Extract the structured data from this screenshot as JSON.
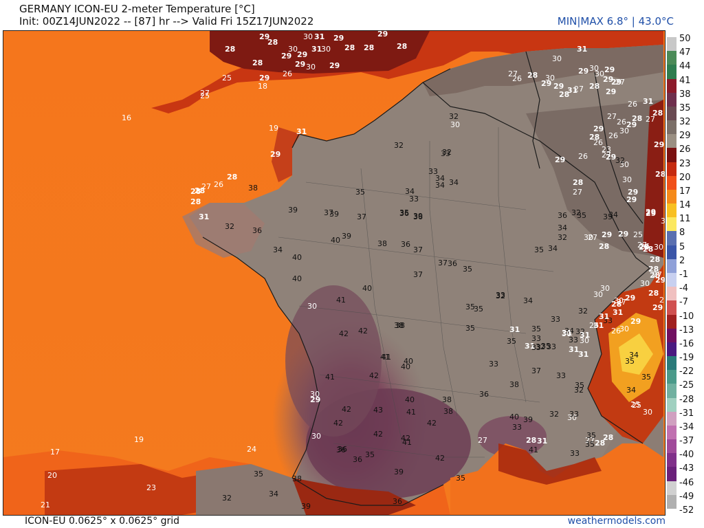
{
  "header": {
    "title": "GERMANY ICON-EU 2-meter Temperature [°C]",
    "init_line": "Init: 00Z14JUN2022 -- [87] hr --> Valid Fri 15Z17JUN2022",
    "minmax": "MIN|MAX 6.8° | 43.0°C"
  },
  "footer": {
    "model": "ICON-EU 0.0625° x 0.0625° grid",
    "site": "weathermodels.com"
  },
  "colorbar": {
    "ticks": [
      "50",
      "47",
      "44",
      "41",
      "38",
      "35",
      "32",
      "29",
      "26",
      "23",
      "20",
      "17",
      "14",
      "11",
      "8",
      "5",
      "2",
      "-1",
      "-4",
      "-7",
      "-10",
      "-13",
      "-16",
      "-19",
      "-22",
      "-25",
      "-28",
      "-31",
      "-34",
      "-37",
      "-40",
      "-43",
      "-46",
      "-49",
      "-52"
    ],
    "colors": [
      "#c8c8c8",
      "#4a8a57",
      "#2e7d4f",
      "#8b1a2a",
      "#6e2f4d",
      "#6a4a52",
      "#7b6f68",
      "#9a8f82",
      "#7a1010",
      "#c52a10",
      "#f0501a",
      "#f58a1a",
      "#f8c020",
      "#fbe860",
      "#5a6fb0",
      "#3a55a8",
      "#8fa0d8",
      "#c8d0f0",
      "#f0c0c0",
      "#d05050",
      "#a02020",
      "#701060",
      "#4a1a80",
      "#2a7a7a",
      "#4a9a8a",
      "#70b0a0",
      "#a0d0c0",
      "#d0a0c0",
      "#c070b0",
      "#a04a9a",
      "#80308a",
      "#6a207a",
      "#d0d0d0",
      "#b0b0b0"
    ]
  },
  "map": {
    "labels": [
      {
        "t": "29"
      },
      {
        "t": "28"
      },
      {
        "t": "30"
      },
      {
        "t": "29"
      },
      {
        "t": "31"
      },
      {
        "t": "31"
      },
      {
        "t": "29"
      },
      {
        "t": "28"
      },
      {
        "t": "30"
      },
      {
        "t": "29"
      },
      {
        "t": "28"
      },
      {
        "t": "29"
      },
      {
        "t": "30"
      },
      {
        "t": "29"
      },
      {
        "t": "30"
      },
      {
        "t": "28"
      },
      {
        "t": "29"
      },
      {
        "t": "28"
      },
      {
        "t": "28"
      },
      {
        "t": "25"
      },
      {
        "t": "26"
      },
      {
        "t": "29"
      },
      {
        "t": "18"
      },
      {
        "t": "27"
      },
      {
        "t": "25"
      },
      {
        "t": "16"
      },
      {
        "t": "19"
      },
      {
        "t": "31"
      },
      {
        "t": "29"
      },
      {
        "t": "28"
      },
      {
        "t": "28"
      },
      {
        "t": "27"
      },
      {
        "t": "26"
      },
      {
        "t": "28"
      },
      {
        "t": "28"
      },
      {
        "t": "31"
      },
      {
        "t": "32"
      },
      {
        "t": "38"
      },
      {
        "t": "36"
      },
      {
        "t": "34"
      },
      {
        "t": "40"
      },
      {
        "t": "40"
      },
      {
        "t": "41"
      },
      {
        "t": "30"
      },
      {
        "t": "42"
      },
      {
        "t": "41"
      },
      {
        "t": "30"
      },
      {
        "t": "29"
      },
      {
        "t": "30"
      },
      {
        "t": "36"
      },
      {
        "t": "39"
      },
      {
        "t": "37"
      },
      {
        "t": "37"
      },
      {
        "t": "35"
      },
      {
        "t": "40"
      },
      {
        "t": "39"
      },
      {
        "t": "38"
      },
      {
        "t": "40"
      },
      {
        "t": "42"
      },
      {
        "t": "41"
      },
      {
        "t": "42"
      },
      {
        "t": "42"
      },
      {
        "t": "43"
      },
      {
        "t": "42"
      },
      {
        "t": "42"
      },
      {
        "t": "36"
      },
      {
        "t": "36"
      },
      {
        "t": "35"
      },
      {
        "t": "38"
      },
      {
        "t": "34"
      },
      {
        "t": "32"
      },
      {
        "t": "39"
      },
      {
        "t": "36"
      },
      {
        "t": "39"
      },
      {
        "t": "35"
      },
      {
        "t": "33"
      },
      {
        "t": "33"
      },
      {
        "t": "32"
      },
      {
        "t": "30"
      },
      {
        "t": "32"
      },
      {
        "t": "33"
      },
      {
        "t": "34"
      },
      {
        "t": "34"
      },
      {
        "t": "34"
      },
      {
        "t": "36"
      },
      {
        "t": "36"
      },
      {
        "t": "37"
      },
      {
        "t": "37"
      },
      {
        "t": "36"
      },
      {
        "t": "35"
      },
      {
        "t": "37"
      },
      {
        "t": "38"
      },
      {
        "t": "40"
      },
      {
        "t": "40"
      },
      {
        "t": "41"
      },
      {
        "t": "40"
      },
      {
        "t": "41"
      },
      {
        "t": "42"
      },
      {
        "t": "42"
      },
      {
        "t": "41"
      },
      {
        "t": "42"
      },
      {
        "t": "38"
      },
      {
        "t": "38"
      },
      {
        "t": "35"
      },
      {
        "t": "35"
      },
      {
        "t": "35"
      },
      {
        "t": "35"
      },
      {
        "t": "33"
      },
      {
        "t": "36"
      },
      {
        "t": "38"
      },
      {
        "t": "37"
      },
      {
        "t": "39"
      },
      {
        "t": "41"
      },
      {
        "t": "40"
      },
      {
        "t": "33"
      },
      {
        "t": "32"
      },
      {
        "t": "27"
      },
      {
        "t": "28"
      },
      {
        "t": "31"
      },
      {
        "t": "30"
      },
      {
        "t": "27"
      },
      {
        "t": "28"
      },
      {
        "t": "28"
      },
      {
        "t": "25"
      },
      {
        "t": "30"
      },
      {
        "t": "25"
      },
      {
        "t": "34"
      },
      {
        "t": "35"
      },
      {
        "t": "35"
      },
      {
        "t": "34"
      },
      {
        "t": "32"
      },
      {
        "t": "33"
      },
      {
        "t": "35"
      },
      {
        "t": "33"
      },
      {
        "t": "35"
      },
      {
        "t": "35"
      },
      {
        "t": "33"
      },
      {
        "t": "31"
      },
      {
        "t": "32"
      },
      {
        "t": "26"
      },
      {
        "t": "28"
      },
      {
        "t": "27"
      },
      {
        "t": "26"
      },
      {
        "t": "30"
      },
      {
        "t": "29"
      },
      {
        "t": "32"
      },
      {
        "t": "34"
      },
      {
        "t": "33"
      },
      {
        "t": "33"
      },
      {
        "t": "35"
      },
      {
        "t": "34"
      },
      {
        "t": "35"
      },
      {
        "t": "31"
      },
      {
        "t": "31"
      },
      {
        "t": "33"
      },
      {
        "t": "32"
      },
      {
        "t": "33"
      },
      {
        "t": "33"
      },
      {
        "t": "34"
      },
      {
        "t": "35"
      },
      {
        "t": "33"
      },
      {
        "t": "31"
      },
      {
        "t": "31"
      },
      {
        "t": "30"
      },
      {
        "t": "32"
      },
      {
        "t": "33"
      },
      {
        "t": "30"
      },
      {
        "t": "31"
      },
      {
        "t": "31"
      },
      {
        "t": "31"
      },
      {
        "t": "30"
      },
      {
        "t": "30"
      },
      {
        "t": "31"
      },
      {
        "t": "30"
      },
      {
        "t": "29"
      },
      {
        "t": "30"
      },
      {
        "t": "29"
      },
      {
        "t": "28"
      },
      {
        "t": "29"
      },
      {
        "t": "27"
      },
      {
        "t": "26"
      },
      {
        "t": "28"
      },
      {
        "t": "27"
      },
      {
        "t": "28"
      },
      {
        "t": "28"
      },
      {
        "t": "27"
      },
      {
        "t": "29"
      },
      {
        "t": "28"
      },
      {
        "t": "29"
      },
      {
        "t": "30"
      },
      {
        "t": "29"
      },
      {
        "t": "28"
      },
      {
        "t": "29"
      },
      {
        "t": "29"
      },
      {
        "t": "30"
      },
      {
        "t": "30"
      },
      {
        "t": "32"
      },
      {
        "t": "27"
      },
      {
        "t": "30"
      },
      {
        "t": "31"
      },
      {
        "t": "28"
      },
      {
        "t": "29"
      },
      {
        "t": "26"
      },
      {
        "t": "29"
      },
      {
        "t": "29"
      },
      {
        "t": "23"
      },
      {
        "t": "26"
      },
      {
        "t": "28"
      },
      {
        "t": "26"
      },
      {
        "t": "29"
      },
      {
        "t": "28"
      },
      {
        "t": "27"
      },
      {
        "t": "32"
      },
      {
        "t": "36"
      },
      {
        "t": "34"
      },
      {
        "t": "35"
      },
      {
        "t": "35"
      },
      {
        "t": "34"
      },
      {
        "t": "32"
      },
      {
        "t": "30"
      },
      {
        "t": "29"
      },
      {
        "t": "28"
      },
      {
        "t": "25"
      },
      {
        "t": "30"
      },
      {
        "t": "27"
      },
      {
        "t": "28"
      },
      {
        "t": "17"
      },
      {
        "t": "19"
      },
      {
        "t": "24"
      },
      {
        "t": "20"
      },
      {
        "t": "23"
      },
      {
        "t": "35"
      },
      {
        "t": "38"
      },
      {
        "t": "34"
      },
      {
        "t": "32"
      },
      {
        "t": "39"
      },
      {
        "t": "36"
      },
      {
        "t": "35"
      },
      {
        "t": "39"
      },
      {
        "t": "21"
      },
      {
        "t": "27"
      },
      {
        "t": "26"
      },
      {
        "t": "28"
      },
      {
        "t": "29"
      },
      {
        "t": "30"
      },
      {
        "t": "29"
      },
      {
        "t": "28"
      },
      {
        "t": "31"
      },
      {
        "t": "30"
      },
      {
        "t": "31"
      },
      {
        "t": "29"
      },
      {
        "t": "30"
      },
      {
        "t": "30"
      },
      {
        "t": "29"
      },
      {
        "t": "29"
      },
      {
        "t": "29"
      },
      {
        "t": "28"
      },
      {
        "t": "29"
      },
      {
        "t": "27"
      },
      {
        "t": "26"
      },
      {
        "t": "28"
      },
      {
        "t": "27"
      },
      {
        "t": "26"
      },
      {
        "t": "27"
      },
      {
        "t": "29"
      },
      {
        "t": "27"
      }
    ]
  }
}
